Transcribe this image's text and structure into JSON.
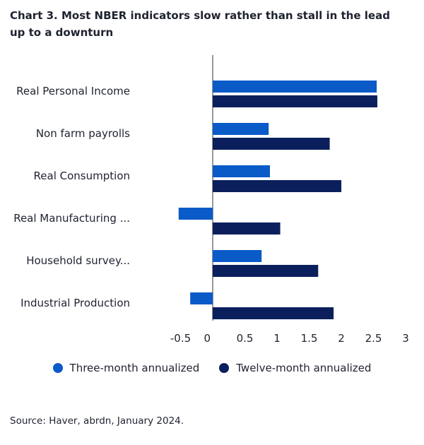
{
  "chart_data": {
    "type": "bar",
    "orientation": "horizontal",
    "title": "Chart 3. Most NBER indicators slow rather than stall in the lead up to a downturn",
    "categories": [
      "Real Personal Income",
      "Non farm payrolls",
      "Real Consumption",
      "Real Manufacturing ...",
      "Household survey...",
      "Industrial Production"
    ],
    "series": [
      {
        "name": "Three-month annualized",
        "color": "#0a5ac8",
        "values": [
          2.55,
          0.87,
          0.89,
          -0.53,
          0.76,
          -0.35
        ]
      },
      {
        "name": "Twelve-month annualized",
        "color": "#0b1f5c",
        "values": [
          2.56,
          1.82,
          2.0,
          1.05,
          1.64,
          1.88
        ]
      }
    ],
    "xticks": [
      "-0.5",
      "0",
      "0.5",
      "1",
      "1.5",
      "2",
      "2.5",
      "3"
    ],
    "xlim": [
      -0.5,
      3
    ],
    "legend_position": "bottom",
    "grid": false
  },
  "source": "Source: Haver, abrdn, January 2024."
}
